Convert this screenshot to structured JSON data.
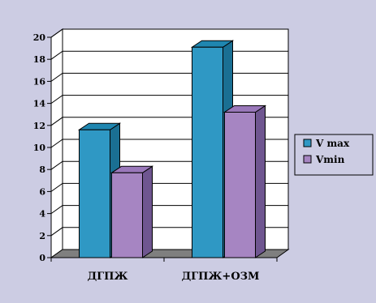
{
  "chart_data": {
    "type": "bar",
    "three_d": true,
    "categories": [
      "ДГПЖ",
      "ДГПЖ+ОЗМ"
    ],
    "series": [
      {
        "name": "V max",
        "values": [
          11.6,
          19.1
        ],
        "color": "#2f98c4",
        "side_color": "#1a6f93",
        "top_color": "#1f86b0"
      },
      {
        "name": "Vmin",
        "values": [
          7.7,
          13.2
        ],
        "color": "#a685c2",
        "side_color": "#6f5690",
        "top_color": "#9a78ba"
      }
    ],
    "ylim": [
      0,
      20
    ],
    "yticks": [
      0,
      2,
      4,
      6,
      8,
      10,
      12,
      14,
      16,
      18,
      20
    ],
    "grid": true,
    "legend_position": "right",
    "colors": {
      "background": "#cccce3",
      "plot_wall": "#ffffff",
      "floor": "#7f7f7f",
      "gridline": "#000000"
    }
  }
}
